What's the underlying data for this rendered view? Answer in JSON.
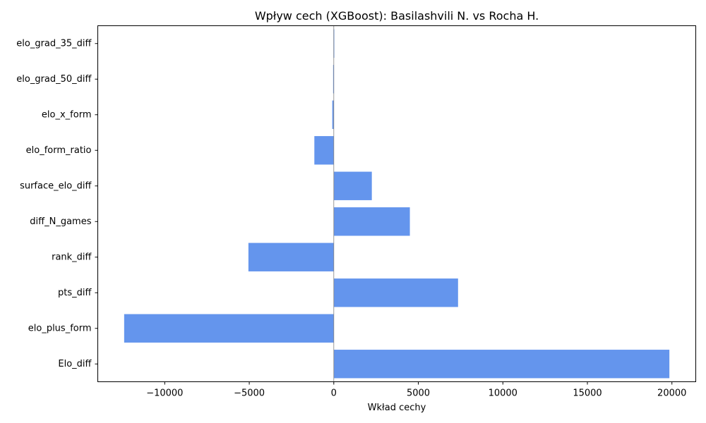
{
  "chart_data": {
    "type": "bar",
    "orientation": "horizontal",
    "title": "Wpływ cech (XGBoost): Basilashvili N. vs Rocha H.",
    "xlabel": "Wkład cechy",
    "ylabel": "",
    "categories": [
      "Elo_diff",
      "elo_plus_form",
      "pts_diff",
      "rank_diff",
      "diff_N_games",
      "surface_elo_diff",
      "elo_form_ratio",
      "elo_x_form",
      "elo_grad_50_diff",
      "elo_grad_35_diff"
    ],
    "values": [
      19850,
      -12400,
      7350,
      -5050,
      4500,
      2250,
      -1150,
      -90,
      -40,
      -20
    ],
    "xticks": [
      -10000,
      -5000,
      0,
      5000,
      10000,
      15000,
      20000
    ],
    "xtick_labels": [
      "−10000",
      "−5000",
      "0",
      "5000",
      "10000",
      "15000",
      "20000"
    ],
    "xlim": [
      -13960,
      21410
    ],
    "bar_color": "#6495ed",
    "zero_line_color": "#808080",
    "grid": false,
    "legend": "none"
  }
}
